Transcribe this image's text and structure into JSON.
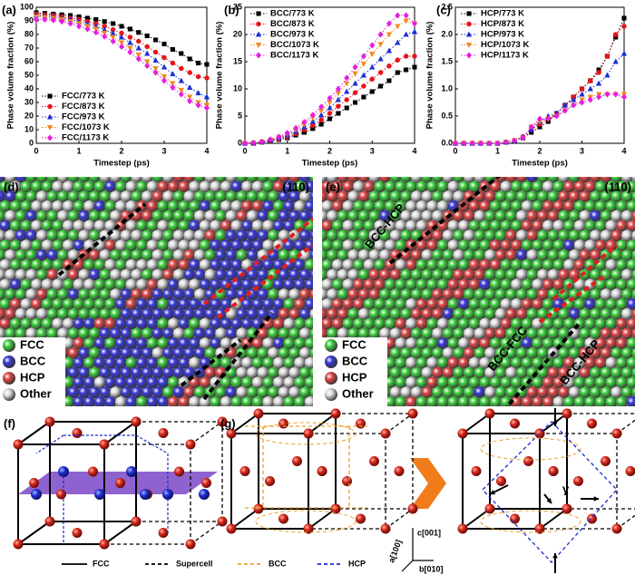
{
  "chart_data": [
    {
      "type": "line",
      "label": "(a)",
      "x_label": "Timestep (ps)",
      "y_label": "Phase volume fraction (%)",
      "x": [
        0,
        0.2,
        0.4,
        0.6,
        0.8,
        1,
        1.2,
        1.4,
        1.6,
        1.8,
        2,
        2.2,
        2.4,
        2.6,
        2.8,
        3,
        3.2,
        3.4,
        3.6,
        3.8,
        4
      ],
      "xlim": [
        0,
        4
      ],
      "xticks": [
        0,
        1,
        2,
        3,
        4
      ],
      "ylim": [
        0,
        100
      ],
      "yticks": [
        0,
        10,
        20,
        30,
        40,
        50,
        60,
        70,
        80,
        90,
        100
      ],
      "legend_position": "bottom-left",
      "series": [
        {
          "name": "FCC/773 K",
          "color": "#000000",
          "marker": "square",
          "values": [
            96,
            95.5,
            95,
            94.5,
            94,
            93,
            92,
            91,
            89.5,
            88,
            86,
            84,
            81.5,
            79,
            76,
            73,
            69,
            66,
            62,
            59,
            58
          ]
        },
        {
          "name": "FCC/873 K",
          "color": "#e8141a",
          "marker": "circle",
          "values": [
            95,
            94.5,
            94,
            93,
            92,
            91,
            89.5,
            88,
            86,
            83.5,
            81,
            78,
            75,
            71,
            67,
            63,
            59,
            55,
            52,
            49,
            48
          ]
        },
        {
          "name": "FCC/973 K",
          "color": "#1c2fd6",
          "marker": "triangle-up",
          "values": [
            94,
            93.5,
            93,
            92,
            91,
            89.5,
            88,
            86,
            83.5,
            81,
            78,
            74,
            70,
            66,
            61,
            56,
            51,
            46,
            41,
            37,
            34
          ]
        },
        {
          "name": "FCC/1073 K",
          "color": "#f08a24",
          "marker": "triangle-down",
          "values": [
            93,
            92.5,
            92,
            91,
            89.5,
            88,
            86,
            84,
            81,
            78,
            74,
            70,
            65,
            60,
            55,
            49,
            44,
            39,
            34,
            30,
            28
          ]
        },
        {
          "name": "FCC/1173 K",
          "color": "#e61ee0",
          "marker": "diamond",
          "values": [
            91,
            91,
            90.5,
            89.5,
            88,
            86,
            84,
            81.5,
            78.5,
            75,
            71,
            67,
            62,
            57,
            52,
            46,
            41,
            36,
            31,
            28,
            26
          ]
        }
      ]
    },
    {
      "type": "line",
      "label": "(b)",
      "x_label": "Timestep (ps)",
      "y_label": "Phase volume fraction (%)",
      "x": [
        0,
        0.2,
        0.4,
        0.6,
        0.8,
        1,
        1.2,
        1.4,
        1.6,
        1.8,
        2,
        2.2,
        2.4,
        2.6,
        2.8,
        3,
        3.2,
        3.4,
        3.6,
        3.8,
        4
      ],
      "xlim": [
        0,
        4
      ],
      "xticks": [
        0,
        1,
        2,
        3,
        4
      ],
      "ylim": [
        0,
        25
      ],
      "yticks": [
        0,
        5,
        10,
        15,
        20,
        25
      ],
      "legend_position": "top-left",
      "series": [
        {
          "name": "BCC/773 K",
          "color": "#000000",
          "marker": "square",
          "values": [
            0,
            0,
            0.2,
            0.4,
            0.7,
            1,
            1.5,
            2,
            2.7,
            3.5,
            4.5,
            5.5,
            6.5,
            7.5,
            8.5,
            9.5,
            10.5,
            11.5,
            13,
            13.5,
            14
          ]
        },
        {
          "name": "BCC/873 K",
          "color": "#e8141a",
          "marker": "circle",
          "values": [
            0,
            0,
            0.2,
            0.5,
            0.8,
            1.2,
            1.8,
            2.5,
            3.3,
            4.3,
            5.5,
            6.8,
            8,
            9.3,
            10.5,
            11.8,
            13,
            14.2,
            15.3,
            16,
            16
          ]
        },
        {
          "name": "BCC/973 K",
          "color": "#1c2fd6",
          "marker": "triangle-up",
          "values": [
            0,
            0.1,
            0.3,
            0.6,
            1,
            1.5,
            2.2,
            3,
            4,
            5.2,
            6.5,
            8,
            9.5,
            11,
            12.5,
            14,
            15.5,
            17,
            18.5,
            20,
            20.5
          ]
        },
        {
          "name": "BCC/1073 K",
          "color": "#f08a24",
          "marker": "triangle-down",
          "values": [
            0,
            0.1,
            0.3,
            0.6,
            1.1,
            1.7,
            2.5,
            3.5,
            4.7,
            6,
            7.5,
            9.2,
            11,
            12.8,
            14.6,
            16.4,
            18.2,
            20,
            21.5,
            22.5,
            22
          ]
        },
        {
          "name": "BCC/1173 K",
          "color": "#e61ee0",
          "marker": "diamond",
          "values": [
            0,
            0.1,
            0.3,
            0.7,
            1.2,
            1.9,
            2.8,
            3.9,
            5.2,
            6.7,
            8.3,
            10,
            12,
            14,
            16,
            18,
            20,
            22,
            23.5,
            23.5,
            22
          ]
        }
      ]
    },
    {
      "type": "line",
      "label": "(c)",
      "x_label": "Timestep (ps)",
      "y_label": "Phase volume fraction (%)",
      "x": [
        0,
        0.2,
        0.4,
        0.6,
        0.8,
        1,
        1.2,
        1.4,
        1.6,
        1.8,
        2,
        2.2,
        2.4,
        2.6,
        2.8,
        3,
        3.2,
        3.4,
        3.6,
        3.8,
        4
      ],
      "xlim": [
        0,
        4
      ],
      "xticks": [
        0,
        1,
        2,
        3,
        4
      ],
      "ylim": [
        0,
        2.5
      ],
      "yticks": [
        {
          "value": 0,
          "label": "0.0"
        },
        0.5,
        {
          "value": 1,
          "label": "1.0"
        },
        1.5,
        {
          "value": 2,
          "label": "2.0"
        },
        2.5
      ],
      "legend_position": "top-left",
      "series": [
        {
          "name": "HCP/773 K",
          "color": "#000000",
          "marker": "square",
          "values": [
            0,
            0,
            0,
            0,
            0,
            0,
            0.02,
            0.05,
            0.1,
            0.2,
            0.3,
            0.4,
            0.55,
            0.7,
            0.85,
            1.0,
            1.15,
            1.35,
            1.6,
            1.95,
            2.3
          ]
        },
        {
          "name": "HCP/873 K",
          "color": "#e8141a",
          "marker": "circle",
          "values": [
            0,
            0,
            0,
            0,
            0,
            0,
            0.02,
            0.05,
            0.12,
            0.25,
            0.35,
            0.45,
            0.55,
            0.7,
            0.85,
            1.0,
            1.15,
            1.3,
            1.6,
            2.0,
            2.15
          ]
        },
        {
          "name": "HCP/973 K",
          "color": "#1c2fd6",
          "marker": "triangle-up",
          "values": [
            0,
            0,
            0,
            0,
            0,
            0,
            0.02,
            0.05,
            0.12,
            0.25,
            0.4,
            0.5,
            0.55,
            0.7,
            0.8,
            0.9,
            1.0,
            1.1,
            1.25,
            1.5,
            1.65
          ]
        },
        {
          "name": "HCP/1073 K",
          "color": "#f08a24",
          "marker": "triangle-down",
          "values": [
            0,
            0,
            0,
            0,
            0,
            0,
            0.02,
            0.05,
            0.1,
            0.3,
            0.4,
            0.45,
            0.5,
            0.6,
            0.7,
            0.8,
            0.85,
            0.9,
            0.9,
            0.9,
            0.9
          ]
        },
        {
          "name": "HCP/1173 K",
          "color": "#e61ee0",
          "marker": "diamond",
          "values": [
            0,
            0,
            0,
            0,
            0,
            0,
            0.02,
            0.05,
            0.1,
            0.3,
            0.45,
            0.45,
            0.5,
            0.6,
            0.7,
            0.75,
            0.8,
            0.85,
            0.9,
            0.9,
            0.85
          ]
        }
      ]
    }
  ],
  "panels": [
    {
      "label": "(d)",
      "plane": "(110)",
      "legend": [
        {
          "name": "FCC",
          "color": "#3fd03f"
        },
        {
          "name": "BCC",
          "color": "#3a3ad8"
        },
        {
          "name": "HCP",
          "color": "#e04848"
        },
        {
          "name": "Other",
          "color": "#dcdcdc"
        }
      ]
    },
    {
      "label": "(e)",
      "plane": "(110)",
      "legend": [
        {
          "name": "FCC",
          "color": "#3fd03f"
        },
        {
          "name": "BCC",
          "color": "#3a3ad8"
        },
        {
          "name": "HCP",
          "color": "#e04848"
        },
        {
          "name": "Other",
          "color": "#dcdcdc"
        }
      ],
      "annotations": [
        "BCC-HCP",
        "BCC-FCC",
        "BCC-HCP"
      ]
    },
    {
      "label": "(f)"
    },
    {
      "label": "(g)",
      "axes": [
        "c[001]",
        "a[100]",
        "b[010]"
      ],
      "angle": "γ"
    }
  ],
  "line_legend": [
    "FCC",
    "Supercell",
    "BCC",
    "HCP"
  ]
}
